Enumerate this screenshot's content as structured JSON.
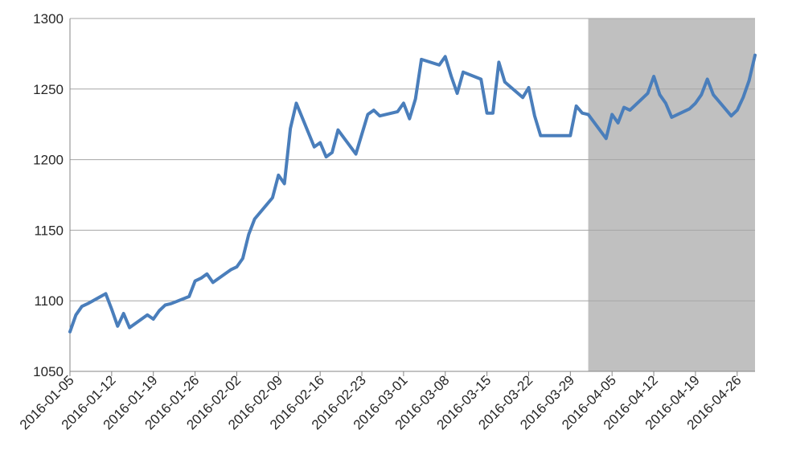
{
  "chart_data": {
    "type": "line",
    "title": "",
    "xlabel": "",
    "ylabel": "",
    "ylim": [
      1050,
      1300
    ],
    "yticks": [
      1050,
      1100,
      1150,
      1200,
      1250,
      1300
    ],
    "grid": true,
    "legend": "none",
    "x_tick_labels": [
      "2016-01-05",
      "2016-01-12",
      "2016-01-19",
      "2016-01-26",
      "2016-02-02",
      "2016-02-09",
      "2016-02-16",
      "2016-02-23",
      "2016-03-01",
      "2016-03-08",
      "2016-03-15",
      "2016-03-22",
      "2016-03-29",
      "2016-04-05",
      "2016-04-12",
      "2016-04-19",
      "2016-04-26"
    ],
    "xlim": [
      "2016-01-05",
      "2016-04-29"
    ],
    "shaded_region": {
      "start": "2016-04-01",
      "end": "2016-04-29",
      "color": "#c0c0c0"
    },
    "series": [
      {
        "color": "#4a7ebb",
        "points": [
          [
            "2016-01-05",
            1078
          ],
          [
            "2016-01-06",
            1090
          ],
          [
            "2016-01-07",
            1096
          ],
          [
            "2016-01-08",
            1098
          ],
          [
            "2016-01-11",
            1105
          ],
          [
            "2016-01-12",
            1094
          ],
          [
            "2016-01-13",
            1082
          ],
          [
            "2016-01-14",
            1091
          ],
          [
            "2016-01-15",
            1081
          ],
          [
            "2016-01-18",
            1090
          ],
          [
            "2016-01-19",
            1087
          ],
          [
            "2016-01-20",
            1093
          ],
          [
            "2016-01-21",
            1097
          ],
          [
            "2016-01-22",
            1098
          ],
          [
            "2016-01-25",
            1103
          ],
          [
            "2016-01-26",
            1114
          ],
          [
            "2016-01-27",
            1116
          ],
          [
            "2016-01-28",
            1119
          ],
          [
            "2016-01-29",
            1113
          ],
          [
            "2016-02-01",
            1122
          ],
          [
            "2016-02-02",
            1124
          ],
          [
            "2016-02-03",
            1130
          ],
          [
            "2016-02-04",
            1147
          ],
          [
            "2016-02-05",
            1158
          ],
          [
            "2016-02-08",
            1173
          ],
          [
            "2016-02-09",
            1189
          ],
          [
            "2016-02-10",
            1183
          ],
          [
            "2016-02-11",
            1222
          ],
          [
            "2016-02-12",
            1240
          ],
          [
            "2016-02-15",
            1209
          ],
          [
            "2016-02-16",
            1212
          ],
          [
            "2016-02-17",
            1202
          ],
          [
            "2016-02-18",
            1205
          ],
          [
            "2016-02-19",
            1221
          ],
          [
            "2016-02-22",
            1204
          ],
          [
            "2016-02-23",
            1218
          ],
          [
            "2016-02-24",
            1232
          ],
          [
            "2016-02-25",
            1235
          ],
          [
            "2016-02-26",
            1231
          ],
          [
            "2016-02-29",
            1234
          ],
          [
            "2016-03-01",
            1240
          ],
          [
            "2016-03-02",
            1229
          ],
          [
            "2016-03-03",
            1243
          ],
          [
            "2016-03-04",
            1271
          ],
          [
            "2016-03-07",
            1267
          ],
          [
            "2016-03-08",
            1273
          ],
          [
            "2016-03-09",
            1259
          ],
          [
            "2016-03-10",
            1247
          ],
          [
            "2016-03-11",
            1262
          ],
          [
            "2016-03-14",
            1257
          ],
          [
            "2016-03-15",
            1233
          ],
          [
            "2016-03-16",
            1233
          ],
          [
            "2016-03-17",
            1269
          ],
          [
            "2016-03-18",
            1255
          ],
          [
            "2016-03-21",
            1244
          ],
          [
            "2016-03-22",
            1251
          ],
          [
            "2016-03-23",
            1231
          ],
          [
            "2016-03-24",
            1217
          ],
          [
            "2016-03-28",
            1217
          ],
          [
            "2016-03-29",
            1217
          ],
          [
            "2016-03-30",
            1238
          ],
          [
            "2016-03-31",
            1233
          ],
          [
            "2016-04-01",
            1232
          ],
          [
            "2016-04-04",
            1215
          ],
          [
            "2016-04-05",
            1232
          ],
          [
            "2016-04-06",
            1226
          ],
          [
            "2016-04-07",
            1237
          ],
          [
            "2016-04-08",
            1235
          ],
          [
            "2016-04-11",
            1247
          ],
          [
            "2016-04-12",
            1259
          ],
          [
            "2016-04-13",
            1246
          ],
          [
            "2016-04-14",
            1240
          ],
          [
            "2016-04-15",
            1230
          ],
          [
            "2016-04-18",
            1236
          ],
          [
            "2016-04-19",
            1240
          ],
          [
            "2016-04-20",
            1246
          ],
          [
            "2016-04-21",
            1257
          ],
          [
            "2016-04-22",
            1246
          ],
          [
            "2016-04-25",
            1231
          ],
          [
            "2016-04-26",
            1235
          ],
          [
            "2016-04-27",
            1244
          ],
          [
            "2016-04-28",
            1256
          ],
          [
            "2016-04-29",
            1274
          ]
        ]
      }
    ]
  }
}
